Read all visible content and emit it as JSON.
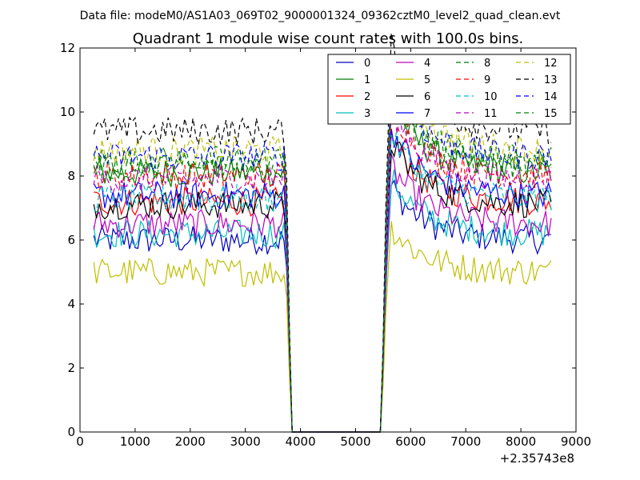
{
  "figure": {
    "suptitle": "Data file: modeM0/AS1A03_069T02_9000001324_09362cztM0_level2_quad_clean.evt"
  },
  "chart_data": {
    "type": "line",
    "title": "Quadrant 1 module wise count rates with 100.0s bins.",
    "xlabel": "",
    "ylabel": "",
    "x_offset_label": "+2.35743e8",
    "xlim": [
      0,
      9000
    ],
    "ylim": [
      0,
      12
    ],
    "x_ticks": [
      0,
      1000,
      2000,
      3000,
      4000,
      5000,
      6000,
      7000,
      8000,
      9000
    ],
    "y_ticks": [
      0,
      2,
      4,
      6,
      8,
      10,
      12
    ],
    "x_tick_labels": [
      "0",
      "1000",
      "2000",
      "3000",
      "4000",
      "5000",
      "6000",
      "7000",
      "8000",
      "9000"
    ],
    "y_tick_labels": [
      "0",
      "2",
      "4",
      "6",
      "8",
      "10",
      "12"
    ],
    "legend_position": "top-right",
    "legend_columns": 4,
    "grid": false,
    "gap": {
      "start": 3850,
      "end": 5450
    },
    "series": [
      {
        "name": "0",
        "color": "#0000bf",
        "dashed": false,
        "level": 6.0
      },
      {
        "name": "1",
        "color": "#007f00",
        "dashed": false,
        "level": 8.1
      },
      {
        "name": "2",
        "color": "#ff0000",
        "dashed": false,
        "level": 7.2
      },
      {
        "name": "3",
        "color": "#00bfbf",
        "dashed": false,
        "level": 6.2
      },
      {
        "name": "4",
        "color": "#bf00bf",
        "dashed": false,
        "level": 6.5
      },
      {
        "name": "5",
        "color": "#bfbf00",
        "dashed": false,
        "level": 5.0
      },
      {
        "name": "6",
        "color": "#000000",
        "dashed": false,
        "level": 7.1
      },
      {
        "name": "7",
        "color": "#0000ff",
        "dashed": false,
        "level": 7.4
      },
      {
        "name": "8",
        "color": "#007f00",
        "dashed": true,
        "level": 8.5
      },
      {
        "name": "9",
        "color": "#ff0000",
        "dashed": true,
        "level": 8.0
      },
      {
        "name": "10",
        "color": "#00bfbf",
        "dashed": true,
        "level": 7.3
      },
      {
        "name": "11",
        "color": "#bf00bf",
        "dashed": true,
        "level": 7.9
      },
      {
        "name": "12",
        "color": "#bfbf00",
        "dashed": true,
        "level": 8.8
      },
      {
        "name": "13",
        "color": "#000000",
        "dashed": true,
        "level": 9.4
      },
      {
        "name": "14",
        "color": "#0000ff",
        "dashed": true,
        "level": 8.6
      },
      {
        "name": "15",
        "color": "#007f00",
        "dashed": true,
        "level": 8.3
      }
    ]
  }
}
